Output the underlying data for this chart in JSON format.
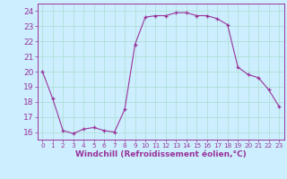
{
  "x": [
    0,
    1,
    2,
    3,
    4,
    5,
    6,
    7,
    8,
    9,
    10,
    11,
    12,
    13,
    14,
    15,
    16,
    17,
    18,
    19,
    20,
    21,
    22,
    23
  ],
  "y": [
    20.0,
    18.2,
    16.1,
    15.9,
    16.2,
    16.3,
    16.1,
    16.0,
    17.5,
    21.8,
    23.6,
    23.7,
    23.7,
    23.9,
    23.9,
    23.7,
    23.7,
    23.5,
    23.1,
    20.3,
    19.8,
    19.6,
    18.8,
    17.7
  ],
  "line_color": "#993399",
  "marker_color": "#993399",
  "bg_color": "#cceeff",
  "grid_color": "#aaddcc",
  "xlabel": "Windchill (Refroidissement éolien,°C)",
  "xlabel_color": "#993399",
  "xlabel_fontsize": 6.5,
  "tick_color": "#993399",
  "ytick_fontsize": 6.5,
  "xtick_fontsize": 5.2,
  "ylim": [
    15.5,
    24.5
  ],
  "yticks": [
    16,
    17,
    18,
    19,
    20,
    21,
    22,
    23,
    24
  ],
  "xlim": [
    -0.5,
    23.5
  ],
  "xticks": [
    0,
    1,
    2,
    3,
    4,
    5,
    6,
    7,
    8,
    9,
    10,
    11,
    12,
    13,
    14,
    15,
    16,
    17,
    18,
    19,
    20,
    21,
    22,
    23
  ]
}
